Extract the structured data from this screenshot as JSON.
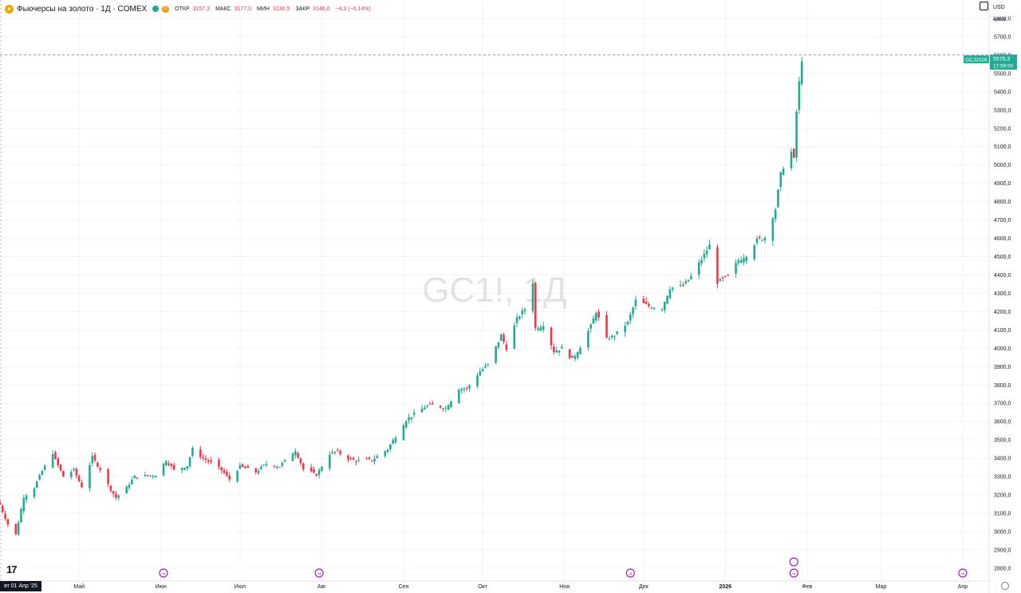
{
  "legend": {
    "title": "Фьючерсы на золото · 1Д · COMEX",
    "d_label": "D",
    "open_label": "ОТКР",
    "open_value": "3157,3",
    "high_label": "МАКС",
    "high_value": "3177,0",
    "low_label": "МИН",
    "low_value": "3130,5",
    "close_label": "ЗАКР",
    "close_value": "3146,0",
    "change": "−4,3 (−0,14%)"
  },
  "currency": "USD",
  "unit_label": "ерсoz",
  "watermark": "GC1!, 1Д",
  "price_badge": {
    "symbol": "GCJ2026",
    "price": "5576,3",
    "countdown": "17:59:50"
  },
  "date_badge": "вт 01 Апр '25",
  "colors": {
    "up": "#22ab94",
    "down": "#f23645",
    "accent": "#22ab94",
    "event": "#9c27b0"
  },
  "chart_data": {
    "type": "candlestick",
    "title": "Фьючерсы на золото · 1Д · COMEX",
    "ylim": [
      2730,
      5900
    ],
    "y_ticks": [
      "2800,0",
      "2900,0",
      "3000,0",
      "3100,0",
      "3200,0",
      "3300,0",
      "3400,0",
      "3500,0",
      "3600,0",
      "3700,0",
      "3800,0",
      "3900,0",
      "4000,0",
      "4100,0",
      "4200,0",
      "4300,0",
      "4400,0",
      "4500,0",
      "4600,0",
      "4700,0",
      "4800,0",
      "4900,0",
      "5000,0",
      "5100,0",
      "5200,0",
      "5300,0",
      "5400,0",
      "5500,0",
      "5600,0",
      "5700,0",
      "5800,0"
    ],
    "x_labels": [
      "Май",
      "Июн",
      "Июл",
      "Авг",
      "Сен",
      "Окт",
      "Ноя",
      "Дек",
      "2026",
      "Фев",
      "Мар",
      "Апр"
    ],
    "x_label_dates": [
      "2025-05-01",
      "2025-06-01",
      "2025-07-01",
      "2025-08-01",
      "2025-09-01",
      "2025-10-01",
      "2025-11-01",
      "2025-12-01",
      "2026-01-01",
      "2026-02-01",
      "2026-03-01",
      "2026-04-01"
    ],
    "x_start_date": "2025-04-01",
    "x_end_date": "2026-04-11",
    "dotted_line_price": 5600,
    "top_dotted_price": 5907,
    "event_markers": [
      {
        "date": "2025-06-02",
        "type": "rollover"
      },
      {
        "date": "2025-07-31",
        "type": "rollover"
      },
      {
        "date": "2025-11-26",
        "type": "rollover"
      },
      {
        "date": "2026-01-27",
        "type": "rollover"
      },
      {
        "date": "2026-04-01",
        "type": "rollover"
      }
    ],
    "closes_path": [
      [
        "2025-04-01",
        3146
      ],
      [
        "2025-04-04",
        3040
      ],
      [
        "2025-04-07",
        2985
      ],
      [
        "2025-04-10",
        3190
      ],
      [
        "2025-04-14",
        3240
      ],
      [
        "2025-04-17",
        3330
      ],
      [
        "2025-04-21",
        3430
      ],
      [
        "2025-04-22",
        3390
      ],
      [
        "2025-04-25",
        3300
      ],
      [
        "2025-04-29",
        3335
      ],
      [
        "2025-05-02",
        3245
      ],
      [
        "2025-05-06",
        3405
      ],
      [
        "2025-05-09",
        3340
      ],
      [
        "2025-05-13",
        3230
      ],
      [
        "2025-05-15",
        3185
      ],
      [
        "2025-05-19",
        3240
      ],
      [
        "2025-05-22",
        3300
      ],
      [
        "2025-05-27",
        3305
      ],
      [
        "2025-05-30",
        3310
      ],
      [
        "2025-06-03",
        3390
      ],
      [
        "2025-06-06",
        3335
      ],
      [
        "2025-06-11",
        3360
      ],
      [
        "2025-06-13",
        3450
      ],
      [
        "2025-06-17",
        3400
      ],
      [
        "2025-06-20",
        3375
      ],
      [
        "2025-06-24",
        3335
      ],
      [
        "2025-06-27",
        3285
      ],
      [
        "2025-07-01",
        3355
      ],
      [
        "2025-07-07",
        3325
      ],
      [
        "2025-07-11",
        3370
      ],
      [
        "2025-07-16",
        3355
      ],
      [
        "2025-07-22",
        3445
      ],
      [
        "2025-07-25",
        3340
      ],
      [
        "2025-07-30",
        3310
      ],
      [
        "2025-08-04",
        3425
      ],
      [
        "2025-08-07",
        3435
      ],
      [
        "2025-08-11",
        3400
      ],
      [
        "2025-08-14",
        3385
      ],
      [
        "2025-08-20",
        3390
      ],
      [
        "2025-08-26",
        3450
      ],
      [
        "2025-08-29",
        3520
      ],
      [
        "2025-09-02",
        3610
      ],
      [
        "2025-09-05",
        3640
      ],
      [
        "2025-09-09",
        3680
      ],
      [
        "2025-09-12",
        3690
      ],
      [
        "2025-09-17",
        3675
      ],
      [
        "2025-09-22",
        3780
      ],
      [
        "2025-09-25",
        3780
      ],
      [
        "2025-09-30",
        3875
      ],
      [
        "2025-10-03",
        3910
      ],
      [
        "2025-10-08",
        4070
      ],
      [
        "2025-10-10",
        4000
      ],
      [
        "2025-10-14",
        4160
      ],
      [
        "2025-10-17",
        4215
      ],
      [
        "2025-10-20",
        4360
      ],
      [
        "2025-10-21",
        4110
      ],
      [
        "2025-10-24",
        4130
      ],
      [
        "2025-10-28",
        3985
      ],
      [
        "2025-10-31",
        4000
      ],
      [
        "2025-11-04",
        3940
      ],
      [
        "2025-11-07",
        4010
      ],
      [
        "2025-11-11",
        4120
      ],
      [
        "2025-11-13",
        4200
      ],
      [
        "2025-11-17",
        4050
      ],
      [
        "2025-11-20",
        4070
      ],
      [
        "2025-11-25",
        4140
      ],
      [
        "2025-11-28",
        4260
      ],
      [
        "2025-12-03",
        4230
      ],
      [
        "2025-12-08",
        4220
      ],
      [
        "2025-12-11",
        4330
      ],
      [
        "2025-12-16",
        4340
      ],
      [
        "2025-12-19",
        4390
      ],
      [
        "2025-12-24",
        4510
      ],
      [
        "2025-12-26",
        4560
      ],
      [
        "2025-12-29",
        4360
      ],
      [
        "2026-01-02",
        4390
      ],
      [
        "2026-01-06",
        4480
      ],
      [
        "2026-01-09",
        4510
      ],
      [
        "2026-01-13",
        4590
      ],
      [
        "2026-01-16",
        4605
      ],
      [
        "2026-01-20",
        4760
      ],
      [
        "2026-01-22",
        4950
      ],
      [
        "2026-01-23",
        4990
      ],
      [
        "2026-01-26",
        5070
      ],
      [
        "2026-01-27",
        5030
      ],
      [
        "2026-01-28",
        5290
      ],
      [
        "2026-01-29",
        5450
      ],
      [
        "2026-01-30",
        5576.3
      ]
    ]
  }
}
